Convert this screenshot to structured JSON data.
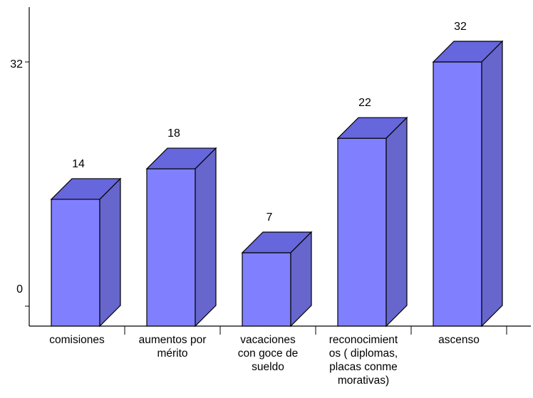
{
  "chart_data": {
    "type": "bar",
    "categories": [
      "comisiones",
      "aumentos por\nmérito",
      "vacaciones\ncon goce de\nsueldo",
      "reconocimient\nos ( diplomas,\nplacas conme\nmorativas)",
      "ascenso"
    ],
    "values": [
      14,
      18,
      7,
      22,
      32
    ],
    "data_labels": [
      "14",
      "18",
      "7",
      "22",
      "32"
    ],
    "y_ticks": [
      "0",
      "32"
    ],
    "ylim": [
      0,
      32
    ],
    "grid": false,
    "legend": "none",
    "style": "3d-column"
  },
  "colors": {
    "bar_front": "#8080ff",
    "bar_top": "#6666dd",
    "bar_side": "#6666cc",
    "outline": "#000000"
  }
}
